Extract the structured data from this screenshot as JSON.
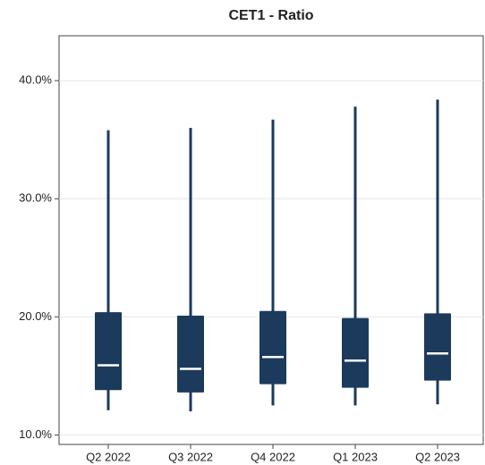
{
  "chart_data": {
    "type": "box",
    "title": "CET1 - Ratio",
    "categories": [
      "Q2 2022",
      "Q3 2022",
      "Q4 2022",
      "Q1 2023",
      "Q2 2023"
    ],
    "low": [
      12.1,
      12.0,
      12.5,
      12.5,
      12.6
    ],
    "q1": [
      13.8,
      13.6,
      14.3,
      14.0,
      14.6
    ],
    "median": [
      15.9,
      15.6,
      16.6,
      16.3,
      16.9
    ],
    "q3": [
      20.4,
      20.1,
      20.5,
      19.9,
      20.3
    ],
    "high": [
      35.8,
      36.0,
      36.7,
      37.8,
      38.4
    ],
    "color": "#1b3a5c",
    "median_color": "#ffffff",
    "ylim": [
      9.2,
      43.8
    ],
    "yticks": [
      {
        "value": 10,
        "label": "10.0%"
      },
      {
        "value": 20,
        "label": "20.0%"
      },
      {
        "value": 30,
        "label": "30.0%"
      },
      {
        "value": 40,
        "label": "40.0%"
      }
    ],
    "grid": true
  }
}
